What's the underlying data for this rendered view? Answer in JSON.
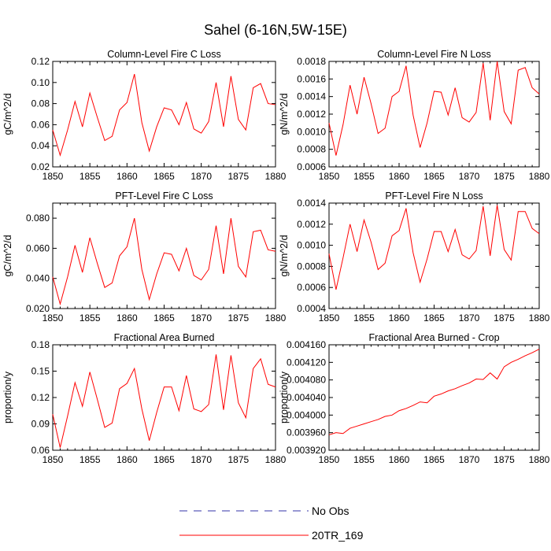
{
  "figure_title": "Sahel (6-16N,5W-15E)",
  "legend": {
    "entries": [
      {
        "label": "No Obs",
        "color": "#3333aa",
        "style": "dashed"
      },
      {
        "label": "20TR_169",
        "color": "#ff0000",
        "style": "solid"
      }
    ]
  },
  "colors": {
    "series": "#ff0000",
    "axis": "#000000"
  },
  "chart_data": [
    {
      "type": "line",
      "title": "Column-Level Fire C Loss",
      "ylabel": "gC/m^2/d",
      "xlabel": "",
      "xlim": [
        1850,
        1880
      ],
      "ylim": [
        0.02,
        0.12
      ],
      "xticks": [
        1850,
        1855,
        1860,
        1865,
        1870,
        1875,
        1880
      ],
      "yticks": [
        0.02,
        0.04,
        0.06,
        0.08,
        0.1,
        0.12
      ],
      "ytick_labels": [
        "0.02",
        "0.04",
        "0.06",
        "0.08",
        "0.10",
        "0.12"
      ],
      "series": [
        {
          "name": "20TR_169",
          "x": [
            1850,
            1851,
            1852,
            1853,
            1854,
            1855,
            1856,
            1857,
            1858,
            1859,
            1860,
            1861,
            1862,
            1863,
            1864,
            1865,
            1866,
            1867,
            1868,
            1869,
            1870,
            1871,
            1872,
            1873,
            1874,
            1875,
            1876,
            1877,
            1878,
            1879,
            1880
          ],
          "values": [
            0.055,
            0.031,
            0.055,
            0.082,
            0.058,
            0.09,
            0.067,
            0.045,
            0.049,
            0.074,
            0.081,
            0.108,
            0.062,
            0.035,
            0.058,
            0.076,
            0.074,
            0.06,
            0.081,
            0.056,
            0.052,
            0.063,
            0.1,
            0.058,
            0.106,
            0.065,
            0.055,
            0.095,
            0.099,
            0.08,
            0.079
          ]
        }
      ]
    },
    {
      "type": "line",
      "title": "Column-Level Fire N Loss",
      "ylabel": "gN/m^2/d",
      "xlabel": "",
      "xlim": [
        1850,
        1880
      ],
      "ylim": [
        0.0006,
        0.0018
      ],
      "xticks": [
        1850,
        1855,
        1860,
        1865,
        1870,
        1875,
        1880
      ],
      "yticks": [
        0.0006,
        0.0008,
        0.001,
        0.0012,
        0.0014,
        0.0016,
        0.0018
      ],
      "ytick_labels": [
        "0.0006",
        "0.0008",
        "0.0010",
        "0.0012",
        "0.0014",
        "0.0016",
        "0.0018"
      ],
      "series": [
        {
          "name": "20TR_169",
          "x": [
            1850,
            1851,
            1852,
            1853,
            1854,
            1855,
            1856,
            1857,
            1858,
            1859,
            1860,
            1861,
            1862,
            1863,
            1864,
            1865,
            1866,
            1867,
            1868,
            1869,
            1870,
            1871,
            1872,
            1873,
            1874,
            1875,
            1876,
            1877,
            1878,
            1879,
            1880
          ],
          "values": [
            0.0011,
            0.00073,
            0.00108,
            0.00153,
            0.0012,
            0.00162,
            0.00132,
            0.00098,
            0.00104,
            0.0014,
            0.00146,
            0.00175,
            0.00119,
            0.00082,
            0.0011,
            0.00146,
            0.00145,
            0.00119,
            0.0015,
            0.00116,
            0.00111,
            0.00122,
            0.00178,
            0.00113,
            0.0018,
            0.00123,
            0.00109,
            0.0017,
            0.00173,
            0.0015,
            0.00143
          ]
        }
      ]
    },
    {
      "type": "line",
      "title": "PFT-Level Fire C Loss",
      "ylabel": "gC/m^2/d",
      "xlabel": "",
      "xlim": [
        1850,
        1880
      ],
      "ylim": [
        0.02,
        0.09
      ],
      "xticks": [
        1850,
        1855,
        1860,
        1865,
        1870,
        1875,
        1880
      ],
      "yticks": [
        0.02,
        0.04,
        0.06,
        0.08
      ],
      "ytick_labels": [
        "0.020",
        "0.040",
        "0.060",
        "0.080"
      ],
      "series": [
        {
          "name": "20TR_169",
          "x": [
            1850,
            1851,
            1852,
            1853,
            1854,
            1855,
            1856,
            1857,
            1858,
            1859,
            1860,
            1861,
            1862,
            1863,
            1864,
            1865,
            1866,
            1867,
            1868,
            1869,
            1870,
            1871,
            1872,
            1873,
            1874,
            1875,
            1876,
            1877,
            1878,
            1879,
            1880
          ],
          "values": [
            0.041,
            0.023,
            0.041,
            0.062,
            0.044,
            0.067,
            0.05,
            0.034,
            0.037,
            0.055,
            0.061,
            0.08,
            0.046,
            0.026,
            0.043,
            0.057,
            0.056,
            0.045,
            0.06,
            0.042,
            0.039,
            0.046,
            0.075,
            0.043,
            0.08,
            0.048,
            0.041,
            0.071,
            0.072,
            0.059,
            0.058
          ]
        }
      ]
    },
    {
      "type": "line",
      "title": "PFT-Level Fire N Loss",
      "ylabel": "gN/m^2/d",
      "xlabel": "",
      "xlim": [
        1850,
        1880
      ],
      "ylim": [
        0.0004,
        0.0014
      ],
      "xticks": [
        1850,
        1855,
        1860,
        1865,
        1870,
        1875,
        1880
      ],
      "yticks": [
        0.0004,
        0.0006,
        0.0008,
        0.001,
        0.0012,
        0.0014
      ],
      "ytick_labels": [
        "0.0004",
        "0.0006",
        "0.0008",
        "0.0010",
        "0.0012",
        "0.0014"
      ],
      "series": [
        {
          "name": "20TR_169",
          "x": [
            1850,
            1851,
            1852,
            1853,
            1854,
            1855,
            1856,
            1857,
            1858,
            1859,
            1860,
            1861,
            1862,
            1863,
            1864,
            1865,
            1866,
            1867,
            1868,
            1869,
            1870,
            1871,
            1872,
            1873,
            1874,
            1875,
            1876,
            1877,
            1878,
            1879,
            1880
          ],
          "values": [
            0.00092,
            0.00058,
            0.00088,
            0.0012,
            0.00094,
            0.00124,
            0.00103,
            0.00077,
            0.00083,
            0.00109,
            0.00114,
            0.00135,
            0.00093,
            0.00065,
            0.00087,
            0.00113,
            0.00113,
            0.00094,
            0.00115,
            0.00091,
            0.00087,
            0.00095,
            0.00137,
            0.0009,
            0.00138,
            0.00096,
            0.00086,
            0.00132,
            0.00132,
            0.00116,
            0.00111
          ]
        }
      ]
    },
    {
      "type": "line",
      "title": "Fractional Area Burned",
      "ylabel": "proportion/y",
      "xlabel": "",
      "xlim": [
        1850,
        1880
      ],
      "ylim": [
        0.06,
        0.18
      ],
      "xticks": [
        1850,
        1855,
        1860,
        1865,
        1870,
        1875,
        1880
      ],
      "yticks": [
        0.06,
        0.09,
        0.12,
        0.15,
        0.18
      ],
      "ytick_labels": [
        "0.06",
        "0.09",
        "0.12",
        "0.15",
        "0.18"
      ],
      "series": [
        {
          "name": "20TR_169",
          "x": [
            1850,
            1851,
            1852,
            1853,
            1854,
            1855,
            1856,
            1857,
            1858,
            1859,
            1860,
            1861,
            1862,
            1863,
            1864,
            1865,
            1866,
            1867,
            1868,
            1869,
            1870,
            1871,
            1872,
            1873,
            1874,
            1875,
            1876,
            1877,
            1878,
            1879,
            1880
          ],
          "values": [
            0.101,
            0.063,
            0.099,
            0.137,
            0.11,
            0.149,
            0.118,
            0.086,
            0.091,
            0.13,
            0.136,
            0.153,
            0.107,
            0.071,
            0.103,
            0.132,
            0.132,
            0.105,
            0.145,
            0.107,
            0.104,
            0.112,
            0.169,
            0.106,
            0.168,
            0.114,
            0.097,
            0.153,
            0.164,
            0.135,
            0.132
          ]
        }
      ]
    },
    {
      "type": "line",
      "title": "Fractional Area Burned - Crop",
      "ylabel": "proportion/y",
      "xlabel": "",
      "xlim": [
        1850,
        1880
      ],
      "ylim": [
        0.00392,
        0.00416
      ],
      "xticks": [
        1850,
        1855,
        1860,
        1865,
        1870,
        1875,
        1880
      ],
      "yticks": [
        0.00392,
        0.00396,
        0.004,
        0.00404,
        0.00408,
        0.00412,
        0.00416
      ],
      "ytick_labels": [
        "0.003920",
        "0.003960",
        "0.004000",
        "0.004040",
        "0.004080",
        "0.004120",
        "0.004160"
      ],
      "series": [
        {
          "name": "20TR_169",
          "x": [
            1850,
            1851,
            1852,
            1853,
            1854,
            1855,
            1856,
            1857,
            1858,
            1859,
            1860,
            1861,
            1862,
            1863,
            1864,
            1865,
            1866,
            1867,
            1868,
            1869,
            1870,
            1871,
            1872,
            1873,
            1874,
            1875,
            1876,
            1877,
            1878,
            1879,
            1880
          ],
          "values": [
            0.003955,
            0.00396,
            0.003958,
            0.00397,
            0.003975,
            0.00398,
            0.003985,
            0.00399,
            0.003997,
            0.004,
            0.00401,
            0.004015,
            0.004022,
            0.00403,
            0.004028,
            0.004043,
            0.004048,
            0.004055,
            0.00406,
            0.004067,
            0.004073,
            0.004082,
            0.004081,
            0.004096,
            0.004082,
            0.00411,
            0.00412,
            0.004127,
            0.004135,
            0.004142,
            0.00415
          ]
        }
      ]
    }
  ]
}
